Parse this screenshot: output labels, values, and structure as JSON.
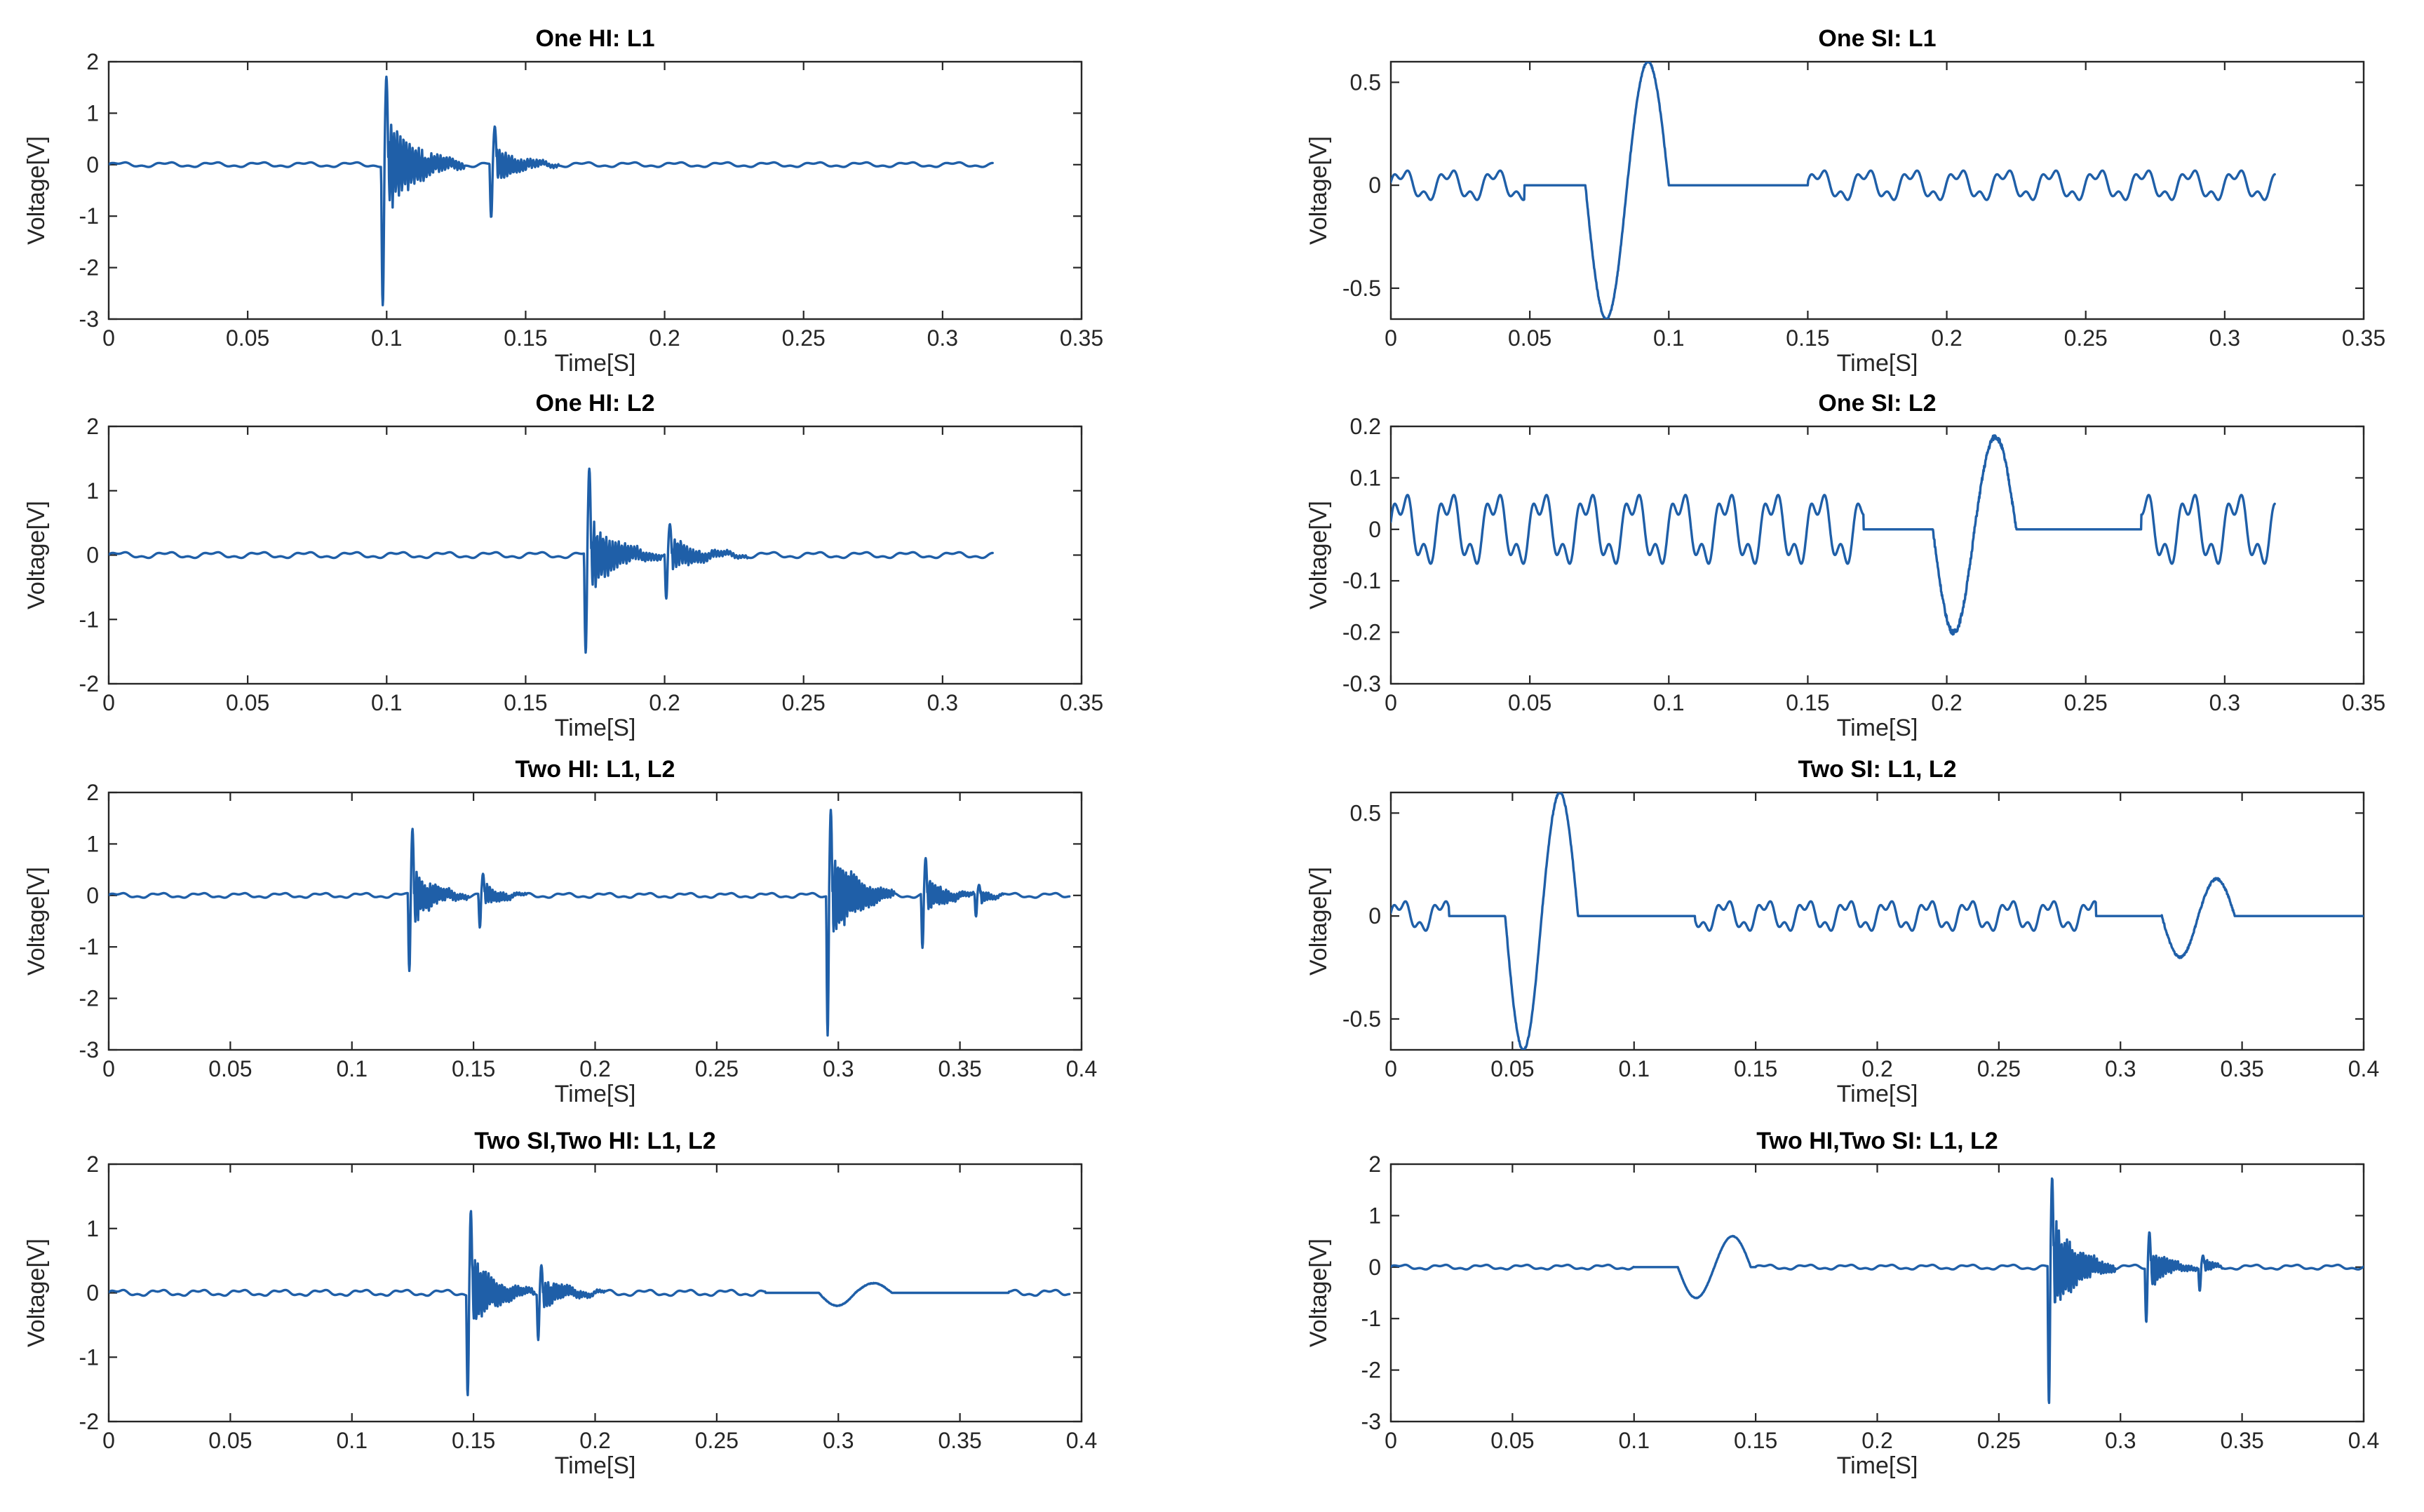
{
  "colors": {
    "trace": "#1f5fa8",
    "axis": "#262626"
  },
  "chart_data": [
    {
      "id": "p1",
      "type": "line",
      "title": "One HI: L1",
      "xlabel": "Time[S]",
      "ylabel": "Voltage[V]",
      "xlim": [
        0,
        0.35
      ],
      "ylim": [
        -3,
        2
      ],
      "xticks": [
        0,
        0.05,
        0.1,
        0.15,
        0.2,
        0.25,
        0.3,
        0.35
      ],
      "yticks": [
        -3,
        -2,
        -1,
        0,
        1,
        2
      ],
      "xtick_labels": [
        "0",
        "0.05",
        "0.1",
        "0.15",
        "0.2",
        "0.25",
        "0.3",
        "0.35"
      ],
      "ytick_labels": [
        "-3",
        "-2",
        "-1",
        "0",
        "1",
        "2"
      ],
      "series": [
        {
          "name": "Voltage",
          "baseline_amplitude": 0.05,
          "baseline_frequency_hz": 60,
          "x_end": 0.318,
          "events": [
            {
              "kind": "hi",
              "t": 0.098,
              "peak": 1.7,
              "trough": -2.7,
              "duration": 0.03
            },
            {
              "kind": "hi",
              "t": 0.137,
              "peak": 0.7,
              "trough": -1.05,
              "duration": 0.025
            }
          ]
        }
      ]
    },
    {
      "id": "p2",
      "type": "line",
      "title": "One SI: L1",
      "xlabel": "Time[S]",
      "ylabel": "Voltage[V]",
      "xlim": [
        0,
        0.35
      ],
      "ylim": [
        -0.65,
        0.6
      ],
      "xticks": [
        0,
        0.05,
        0.1,
        0.15,
        0.2,
        0.25,
        0.3,
        0.35
      ],
      "yticks": [
        -0.5,
        0,
        0.5
      ],
      "xtick_labels": [
        "0",
        "0.05",
        "0.1",
        "0.15",
        "0.2",
        "0.25",
        "0.3",
        "0.35"
      ],
      "ytick_labels": [
        "-0.5",
        "0",
        "0.5"
      ],
      "series": [
        {
          "name": "Voltage",
          "baseline_amplitude": 0.08,
          "baseline_frequency_hz": 60,
          "x_end": 0.318,
          "flat_segments": [
            [
              0.048,
              0.15
            ]
          ],
          "events": [
            {
              "kind": "si",
              "t": 0.07,
              "trough": -0.65,
              "peak": 0.6,
              "duration": 0.03
            }
          ]
        }
      ]
    },
    {
      "id": "p3",
      "type": "line",
      "title": "One HI: L2",
      "xlabel": "Time[S]",
      "ylabel": "Voltage[V]",
      "xlim": [
        0,
        0.35
      ],
      "ylim": [
        -2,
        2
      ],
      "xticks": [
        0,
        0.05,
        0.1,
        0.15,
        0.2,
        0.25,
        0.3,
        0.35
      ],
      "yticks": [
        -2,
        -1,
        0,
        1,
        2
      ],
      "xtick_labels": [
        "0",
        "0.05",
        "0.1",
        "0.15",
        "0.2",
        "0.25",
        "0.3",
        "0.35"
      ],
      "ytick_labels": [
        "-2",
        "-1",
        "0",
        "1",
        "2"
      ],
      "series": [
        {
          "name": "Voltage",
          "baseline_amplitude": 0.05,
          "baseline_frequency_hz": 60,
          "x_end": 0.318,
          "events": [
            {
              "kind": "hi",
              "t": 0.171,
              "peak": 1.3,
              "trough": -1.55,
              "duration": 0.028
            },
            {
              "kind": "hi",
              "t": 0.2,
              "peak": 0.45,
              "trough": -0.7,
              "duration": 0.03
            }
          ]
        }
      ]
    },
    {
      "id": "p4",
      "type": "line",
      "title": "One SI: L2",
      "xlabel": "Time[S]",
      "ylabel": "Voltage[V]",
      "xlim": [
        0,
        0.35
      ],
      "ylim": [
        -0.3,
        0.2
      ],
      "xticks": [
        0,
        0.05,
        0.1,
        0.15,
        0.2,
        0.25,
        0.3,
        0.35
      ],
      "yticks": [
        -0.3,
        -0.2,
        -0.1,
        0,
        0.1,
        0.2
      ],
      "xtick_labels": [
        "0",
        "0.05",
        "0.1",
        "0.15",
        "0.2",
        "0.25",
        "0.3",
        "0.35"
      ],
      "ytick_labels": [
        "-0.3",
        "-0.2",
        "-0.1",
        "0",
        "0.1",
        "0.2"
      ],
      "series": [
        {
          "name": "Voltage",
          "baseline_amplitude": 0.075,
          "baseline_frequency_hz": 60,
          "x_end": 0.318,
          "flat_segments": [
            [
              0.17,
              0.27
            ]
          ],
          "events": [
            {
              "kind": "si",
              "t": 0.195,
              "trough": -0.2,
              "peak": 0.18,
              "duration": 0.03
            }
          ]
        }
      ]
    },
    {
      "id": "p5",
      "type": "line",
      "title": "Two HI: L1, L2",
      "xlabel": "Time[S]",
      "ylabel": "Voltage[V]",
      "xlim": [
        0,
        0.4
      ],
      "ylim": [
        -3,
        2
      ],
      "xticks": [
        0,
        0.05,
        0.1,
        0.15,
        0.2,
        0.25,
        0.3,
        0.35,
        0.4
      ],
      "yticks": [
        -3,
        -2,
        -1,
        0,
        1,
        2
      ],
      "xtick_labels": [
        "0",
        "0.05",
        "0.1",
        "0.15",
        "0.2",
        "0.25",
        "0.3",
        "0.35",
        "0.4"
      ],
      "ytick_labels": [
        "-3",
        "-2",
        "-1",
        "0",
        "1",
        "2"
      ],
      "series": [
        {
          "name": "Voltage",
          "baseline_amplitude": 0.05,
          "baseline_frequency_hz": 60,
          "x_end": 0.395,
          "events": [
            {
              "kind": "hi",
              "t": 0.123,
              "peak": 1.3,
              "trough": -1.5,
              "duration": 0.025
            },
            {
              "kind": "hi",
              "t": 0.152,
              "peak": 0.4,
              "trough": -0.65,
              "duration": 0.02
            },
            {
              "kind": "hi",
              "t": 0.295,
              "peak": 1.7,
              "trough": -2.7,
              "duration": 0.028
            },
            {
              "kind": "hi",
              "t": 0.334,
              "peak": 0.7,
              "trough": -1.05,
              "duration": 0.022
            },
            {
              "kind": "hi",
              "t": 0.356,
              "peak": 0.2,
              "trough": -0.45,
              "duration": 0.012
            }
          ]
        }
      ]
    },
    {
      "id": "p6",
      "type": "line",
      "title": "Two SI: L1, L2",
      "xlabel": "Time[S]",
      "ylabel": "Voltage[V]",
      "xlim": [
        0,
        0.4
      ],
      "ylim": [
        -0.65,
        0.6
      ],
      "xticks": [
        0,
        0.05,
        0.1,
        0.15,
        0.2,
        0.25,
        0.3,
        0.35,
        0.4
      ],
      "yticks": [
        -0.5,
        0,
        0.5
      ],
      "xtick_labels": [
        "0",
        "0.05",
        "0.1",
        "0.15",
        "0.2",
        "0.25",
        "0.3",
        "0.35",
        "0.4"
      ],
      "ytick_labels": [
        "-0.5",
        "0",
        "0.5"
      ],
      "series": [
        {
          "name": "Voltage",
          "baseline_amplitude": 0.08,
          "baseline_frequency_hz": 60,
          "x_end": 0.4,
          "flat_segments": [
            [
              0.024,
              0.125
            ],
            [
              0.29,
              0.4
            ]
          ],
          "events": [
            {
              "kind": "si",
              "t": 0.047,
              "trough": -0.65,
              "peak": 0.6,
              "duration": 0.03
            },
            {
              "kind": "si",
              "t": 0.317,
              "trough": -0.2,
              "peak": 0.18,
              "duration": 0.03
            }
          ]
        }
      ]
    },
    {
      "id": "p7",
      "type": "line",
      "title": "Two SI,Two HI: L1, L2",
      "xlabel": "Time[S]",
      "ylabel": "Voltage[V]",
      "xlim": [
        0,
        0.4
      ],
      "ylim": [
        -2,
        2
      ],
      "xticks": [
        0,
        0.05,
        0.1,
        0.15,
        0.2,
        0.25,
        0.3,
        0.35,
        0.4
      ],
      "yticks": [
        -2,
        -1,
        0,
        1,
        2
      ],
      "xtick_labels": [
        "0",
        "0.05",
        "0.1",
        "0.15",
        "0.2",
        "0.25",
        "0.3",
        "0.35",
        "0.4"
      ],
      "ytick_labels": [
        "-2",
        "-1",
        "0",
        "1",
        "2"
      ],
      "series": [
        {
          "name": "Voltage",
          "baseline_amplitude": 0.05,
          "baseline_frequency_hz": 60,
          "x_end": 0.395,
          "flat_segments": [
            [
              0.27,
              0.37
            ]
          ],
          "events": [
            {
              "kind": "hi",
              "t": 0.147,
              "peak": 1.3,
              "trough": -1.55,
              "duration": 0.028
            },
            {
              "kind": "hi",
              "t": 0.176,
              "peak": 0.45,
              "trough": -0.7,
              "duration": 0.028
            },
            {
              "kind": "si",
              "t": 0.292,
              "trough": -0.2,
              "peak": 0.15,
              "duration": 0.03
            }
          ]
        }
      ]
    },
    {
      "id": "p8",
      "type": "line",
      "title": "Two HI,Two SI: L1, L2",
      "xlabel": "Time[S]",
      "ylabel": "Voltage[V]",
      "xlim": [
        0,
        0.4
      ],
      "ylim": [
        -3,
        2
      ],
      "xticks": [
        0,
        0.05,
        0.1,
        0.15,
        0.2,
        0.25,
        0.3,
        0.35,
        0.4
      ],
      "yticks": [
        -3,
        -2,
        -1,
        0,
        1,
        2
      ],
      "xtick_labels": [
        "0",
        "0.05",
        "0.1",
        "0.15",
        "0.2",
        "0.25",
        "0.3",
        "0.35",
        "0.4"
      ],
      "ytick_labels": [
        "-3",
        "-2",
        "-1",
        "0",
        "1",
        "2"
      ],
      "series": [
        {
          "name": "Voltage",
          "baseline_amplitude": 0.05,
          "baseline_frequency_hz": 60,
          "x_end": 0.4,
          "flat_segments": [
            [
              0.1,
              0.15
            ]
          ],
          "events": [
            {
              "kind": "si",
              "t": 0.118,
              "trough": -0.6,
              "peak": 0.6,
              "duration": 0.03
            },
            {
              "kind": "hi",
              "t": 0.27,
              "peak": 1.7,
              "trough": -2.7,
              "duration": 0.028
            },
            {
              "kind": "hi",
              "t": 0.31,
              "peak": 0.7,
              "trough": -1.05,
              "duration": 0.022
            },
            {
              "kind": "hi",
              "t": 0.332,
              "peak": 0.2,
              "trough": -0.45,
              "duration": 0.01
            }
          ]
        }
      ]
    }
  ]
}
